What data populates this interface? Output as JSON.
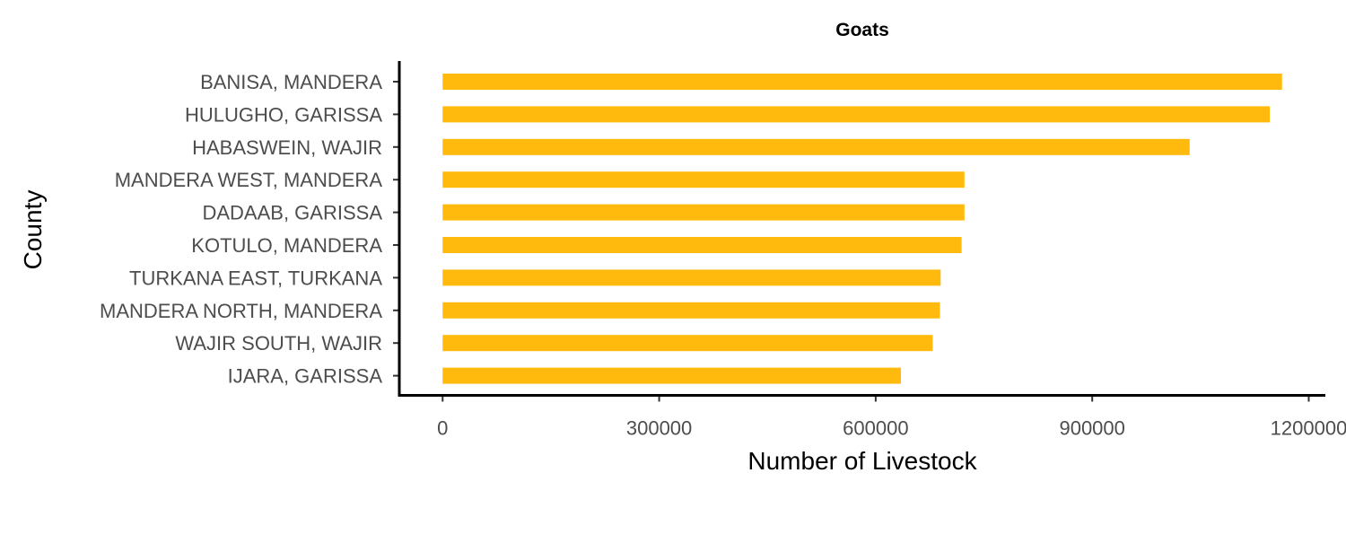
{
  "chart_data": {
    "type": "bar",
    "orientation": "horizontal",
    "title": "Goats",
    "xlabel": "Number of Livestock",
    "ylabel": "County",
    "categories": [
      "BANISA, MANDERA",
      "HULUGHO, GARISSA",
      "HABASWEIN, WAJIR",
      "MANDERA WEST, MANDERA",
      "DADAAB, GARISSA",
      "KOTULO, MANDERA",
      "TURKANA EAST, TURKANA",
      "MANDERA NORTH, MANDERA",
      "WAJIR SOUTH, WAJIR",
      "IJARA, GARISSA"
    ],
    "values": [
      1163000,
      1146000,
      1035000,
      723000,
      723000,
      719000,
      690000,
      689000,
      679000,
      635000
    ],
    "xticks": [
      0,
      300000,
      600000,
      900000,
      1200000
    ],
    "xtick_labels": [
      "0",
      "300000",
      "600000",
      "900000",
      "1200000"
    ],
    "xlim": [
      -60000,
      1223000
    ],
    "grid": false,
    "legend": "none",
    "bar_color": "#FFBA0D"
  }
}
